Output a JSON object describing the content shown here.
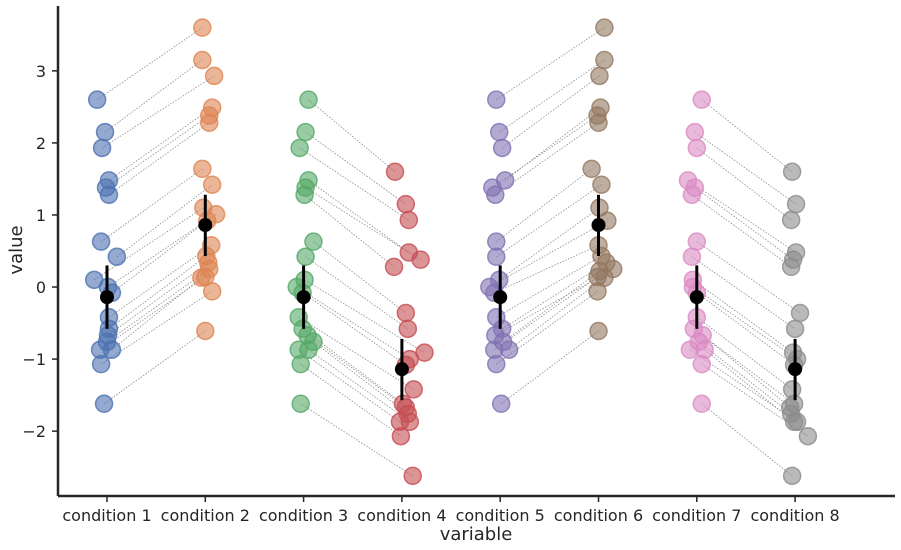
{
  "chart_data": {
    "type": "scatter",
    "xlabel": "variable",
    "ylabel": "value",
    "categories": [
      "condition 1",
      "condition 2",
      "condition 3",
      "condition 4",
      "condition 5",
      "condition 6",
      "condition 7",
      "condition 8"
    ],
    "yticks": [
      -2,
      -1,
      0,
      1,
      2,
      3
    ],
    "ylim": [
      -2.9,
      3.9
    ],
    "grid": false,
    "colors": [
      "#4c72b0",
      "#dd8452",
      "#55a868",
      "#c44e52",
      "#8172b3",
      "#937860",
      "#da8bc3",
      "#8c8c8c"
    ],
    "pairs": [
      [
        0,
        1
      ],
      [
        2,
        3
      ],
      [
        4,
        5
      ],
      [
        6,
        7
      ]
    ],
    "series": [
      {
        "category": "condition 1",
        "points": [
          {
            "x": 0.9,
            "y": 2.6
          },
          {
            "x": 0.98,
            "y": 2.15
          },
          {
            "x": 0.95,
            "y": 1.93
          },
          {
            "x": 1.02,
            "y": 1.48
          },
          {
            "x": 0.99,
            "y": 1.38
          },
          {
            "x": 1.02,
            "y": 1.28
          },
          {
            "x": 0.94,
            "y": 0.63
          },
          {
            "x": 1.1,
            "y": 0.42
          },
          {
            "x": 0.87,
            "y": 0.1
          },
          {
            "x": 1.01,
            "y": 0.0
          },
          {
            "x": 1.05,
            "y": -0.08
          },
          {
            "x": 1.02,
            "y": -0.42
          },
          {
            "x": 1.02,
            "y": -0.58
          },
          {
            "x": 1.01,
            "y": -0.67
          },
          {
            "x": 1.0,
            "y": -0.76
          },
          {
            "x": 0.93,
            "y": -0.87
          },
          {
            "x": 1.05,
            "y": -0.87
          },
          {
            "x": 0.94,
            "y": -1.07
          },
          {
            "x": 0.97,
            "y": -1.62
          }
        ],
        "mean": -0.14,
        "ci": [
          -0.58,
          0.3
        ]
      },
      {
        "category": "condition 2",
        "points": [
          {
            "x": 1.97,
            "y": 3.6
          },
          {
            "x": 1.97,
            "y": 3.15
          },
          {
            "x": 2.09,
            "y": 2.93
          },
          {
            "x": 2.07,
            "y": 2.49
          },
          {
            "x": 2.04,
            "y": 2.38
          },
          {
            "x": 2.04,
            "y": 2.28
          },
          {
            "x": 1.97,
            "y": 1.64
          },
          {
            "x": 2.07,
            "y": 1.42
          },
          {
            "x": 1.98,
            "y": 1.1
          },
          {
            "x": 2.11,
            "y": 1.01
          },
          {
            "x": 2.02,
            "y": 0.92
          },
          {
            "x": 2.06,
            "y": 0.58
          },
          {
            "x": 2.01,
            "y": 0.43
          },
          {
            "x": 2.03,
            "y": 0.34
          },
          {
            "x": 2.04,
            "y": 0.25
          },
          {
            "x": 2.0,
            "y": 0.14
          },
          {
            "x": 1.96,
            "y": 0.13
          },
          {
            "x": 2.07,
            "y": -0.06
          },
          {
            "x": 2.0,
            "y": -0.61
          }
        ],
        "mean": 0.86,
        "ci": [
          0.43,
          1.28
        ]
      },
      {
        "category": "condition 3",
        "points": [
          {
            "x": 3.05,
            "y": 2.6
          },
          {
            "x": 3.02,
            "y": 2.15
          },
          {
            "x": 2.96,
            "y": 1.93
          },
          {
            "x": 3.05,
            "y": 1.48
          },
          {
            "x": 3.02,
            "y": 1.38
          },
          {
            "x": 3.01,
            "y": 1.28
          },
          {
            "x": 3.1,
            "y": 0.63
          },
          {
            "x": 3.02,
            "y": 0.42
          },
          {
            "x": 3.01,
            "y": 0.1
          },
          {
            "x": 2.93,
            "y": 0.0
          },
          {
            "x": 2.99,
            "y": -0.08
          },
          {
            "x": 2.95,
            "y": -0.42
          },
          {
            "x": 2.99,
            "y": -0.58
          },
          {
            "x": 3.04,
            "y": -0.67
          },
          {
            "x": 3.1,
            "y": -0.76
          },
          {
            "x": 2.95,
            "y": -0.87
          },
          {
            "x": 3.05,
            "y": -0.87
          },
          {
            "x": 2.97,
            "y": -1.07
          },
          {
            "x": 2.97,
            "y": -1.62
          }
        ],
        "mean": -0.14,
        "ci": [
          -0.58,
          0.3
        ]
      },
      {
        "category": "condition 4",
        "points": [
          {
            "x": 3.93,
            "y": 1.6
          },
          {
            "x": 4.04,
            "y": 1.15
          },
          {
            "x": 4.07,
            "y": 0.93
          },
          {
            "x": 4.07,
            "y": 0.48
          },
          {
            "x": 4.19,
            "y": 0.38
          },
          {
            "x": 3.92,
            "y": 0.28
          },
          {
            "x": 4.04,
            "y": -0.36
          },
          {
            "x": 4.06,
            "y": -0.58
          },
          {
            "x": 4.23,
            "y": -0.91
          },
          {
            "x": 4.08,
            "y": -1.0
          },
          {
            "x": 4.04,
            "y": -1.08
          },
          {
            "x": 4.12,
            "y": -1.42
          },
          {
            "x": 4.01,
            "y": -1.62
          },
          {
            "x": 4.04,
            "y": -1.67
          },
          {
            "x": 4.06,
            "y": -1.76
          },
          {
            "x": 3.98,
            "y": -1.87
          },
          {
            "x": 4.08,
            "y": -1.87
          },
          {
            "x": 3.99,
            "y": -2.07
          },
          {
            "x": 4.11,
            "y": -2.62
          }
        ],
        "mean": -1.14,
        "ci": [
          -1.57,
          -0.72
        ]
      },
      {
        "category": "condition 5",
        "points": [
          {
            "x": 4.96,
            "y": 2.6
          },
          {
            "x": 4.99,
            "y": 2.15
          },
          {
            "x": 5.02,
            "y": 1.93
          },
          {
            "x": 5.05,
            "y": 1.48
          },
          {
            "x": 4.92,
            "y": 1.38
          },
          {
            "x": 4.95,
            "y": 1.28
          },
          {
            "x": 4.96,
            "y": 0.63
          },
          {
            "x": 4.96,
            "y": 0.42
          },
          {
            "x": 4.99,
            "y": 0.1
          },
          {
            "x": 4.89,
            "y": 0.0
          },
          {
            "x": 4.94,
            "y": -0.08
          },
          {
            "x": 4.96,
            "y": -0.42
          },
          {
            "x": 5.02,
            "y": -0.58
          },
          {
            "x": 4.95,
            "y": -0.67
          },
          {
            "x": 5.03,
            "y": -0.76
          },
          {
            "x": 4.94,
            "y": -0.87
          },
          {
            "x": 5.09,
            "y": -0.87
          },
          {
            "x": 4.96,
            "y": -1.07
          },
          {
            "x": 5.01,
            "y": -1.62
          }
        ],
        "mean": -0.14,
        "ci": [
          -0.58,
          0.3
        ]
      },
      {
        "category": "condition 6",
        "points": [
          {
            "x": 6.06,
            "y": 3.6
          },
          {
            "x": 6.06,
            "y": 3.15
          },
          {
            "x": 6.01,
            "y": 2.93
          },
          {
            "x": 6.02,
            "y": 2.49
          },
          {
            "x": 5.99,
            "y": 2.38
          },
          {
            "x": 6.0,
            "y": 2.28
          },
          {
            "x": 5.93,
            "y": 1.64
          },
          {
            "x": 6.03,
            "y": 1.42
          },
          {
            "x": 6.01,
            "y": 1.1
          },
          {
            "x": 6.09,
            "y": 0.92
          },
          {
            "x": 6.0,
            "y": 0.58
          },
          {
            "x": 6.03,
            "y": 0.43
          },
          {
            "x": 6.08,
            "y": 0.34
          },
          {
            "x": 6.15,
            "y": 0.25
          },
          {
            "x": 6.01,
            "y": 0.22
          },
          {
            "x": 5.99,
            "y": 0.14
          },
          {
            "x": 6.06,
            "y": 0.13
          },
          {
            "x": 5.99,
            "y": -0.06
          },
          {
            "x": 6.0,
            "y": -0.61
          }
        ],
        "mean": 0.86,
        "ci": [
          0.43,
          1.28
        ]
      },
      {
        "category": "condition 7",
        "points": [
          {
            "x": 7.05,
            "y": 2.6
          },
          {
            "x": 6.98,
            "y": 2.15
          },
          {
            "x": 7.0,
            "y": 1.93
          },
          {
            "x": 6.91,
            "y": 1.48
          },
          {
            "x": 6.98,
            "y": 1.38
          },
          {
            "x": 6.95,
            "y": 1.28
          },
          {
            "x": 7.0,
            "y": 0.63
          },
          {
            "x": 6.95,
            "y": 0.42
          },
          {
            "x": 6.96,
            "y": 0.1
          },
          {
            "x": 6.96,
            "y": 0.0
          },
          {
            "x": 7.0,
            "y": -0.08
          },
          {
            "x": 7.0,
            "y": -0.42
          },
          {
            "x": 6.97,
            "y": -0.58
          },
          {
            "x": 7.06,
            "y": -0.67
          },
          {
            "x": 7.02,
            "y": -0.76
          },
          {
            "x": 6.93,
            "y": -0.87
          },
          {
            "x": 7.08,
            "y": -0.87
          },
          {
            "x": 7.05,
            "y": -1.07
          },
          {
            "x": 7.05,
            "y": -1.62
          }
        ],
        "mean": -0.14,
        "ci": [
          -0.58,
          0.3
        ]
      },
      {
        "category": "condition 8",
        "points": [
          {
            "x": 7.97,
            "y": 1.6
          },
          {
            "x": 8.01,
            "y": 1.15
          },
          {
            "x": 7.96,
            "y": 0.93
          },
          {
            "x": 8.01,
            "y": 0.48
          },
          {
            "x": 7.98,
            "y": 0.38
          },
          {
            "x": 7.96,
            "y": 0.28
          },
          {
            "x": 8.05,
            "y": -0.36
          },
          {
            "x": 8.0,
            "y": -0.58
          },
          {
            "x": 7.98,
            "y": -0.91
          },
          {
            "x": 8.02,
            "y": -1.0
          },
          {
            "x": 7.99,
            "y": -1.08
          },
          {
            "x": 7.97,
            "y": -1.42
          },
          {
            "x": 7.99,
            "y": -1.62
          },
          {
            "x": 7.95,
            "y": -1.67
          },
          {
            "x": 7.96,
            "y": -1.76
          },
          {
            "x": 8.02,
            "y": -1.87
          },
          {
            "x": 7.99,
            "y": -1.87
          },
          {
            "x": 8.13,
            "y": -2.07
          },
          {
            "x": 7.97,
            "y": -2.62
          }
        ],
        "mean": -1.14,
        "ci": [
          -1.57,
          -0.72
        ]
      }
    ]
  }
}
